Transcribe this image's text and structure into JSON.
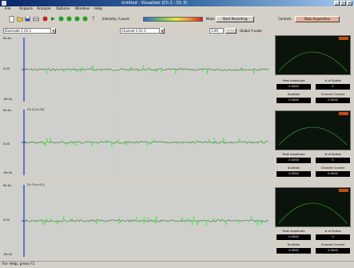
{
  "window": {
    "title": "Untitled - Visualizer (Ch 1 - Ch 3)"
  },
  "menu": [
    "File",
    "Acquire",
    "Analyze",
    "Options",
    "Window",
    "Help"
  ],
  "toolbar": {
    "intensity_label": "Intensity / Levels",
    "mode_label": "Mode",
    "record_button": "Start Recording",
    "settings_label": "Controls",
    "alert_button": "Stop Acquisition",
    "channel_select": "Electrode 1 Ch 1",
    "offset_select": "Channel 1 Ch 1",
    "zoom_field": "1.00",
    "gain_label": "Global Y-scale"
  },
  "channels": [
    {
      "header": "",
      "y_top": "64.0u",
      "y_mid": "0.00",
      "y_bottom": "-64.0u",
      "params": [
        {
          "label": "Peak Amplitude",
          "value": "0.0000"
        },
        {
          "label": "# of Spikes",
          "value": "0"
        },
        {
          "label": "Duration",
          "value": "0.0000"
        },
        {
          "label": "Channel Current",
          "value": "0.0000"
        }
      ]
    },
    {
      "header": "Ch 2 (n=23)",
      "y_top": "64.0u",
      "y_mid": "0.00",
      "y_bottom": "-64.0u",
      "params": [
        {
          "label": "Peak Amplitude",
          "value": "0.0000"
        },
        {
          "label": "# of Spikes",
          "value": "0"
        },
        {
          "label": "Duration",
          "value": "0.0000"
        },
        {
          "label": "Channel Current",
          "value": "0.0000"
        }
      ]
    },
    {
      "header": "Ch 3 (n=11)",
      "y_top": "64.0u",
      "y_mid": "0.00",
      "y_bottom": "-64.0u",
      "params": [
        {
          "label": "Peak Amplitude",
          "value": "0.0000"
        },
        {
          "label": "# of Spikes",
          "value": "0"
        },
        {
          "label": "Duration",
          "value": "0.0000"
        },
        {
          "label": "Channel Current",
          "value": "0.0000"
        }
      ]
    }
  ],
  "status": {
    "text": "For Help, press F1"
  },
  "colors": {
    "trace": "#3d8a3d",
    "spike": "#5ae35a",
    "axis": "#2030d0",
    "scope_bg": "#0a140a",
    "badge": "#c64a12"
  }
}
